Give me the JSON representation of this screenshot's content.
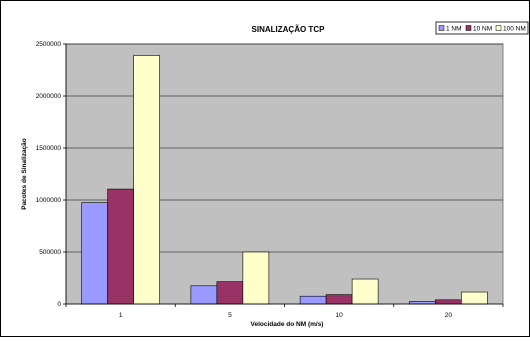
{
  "chart_data": {
    "type": "bar",
    "title": "SINALIZAÇÃO TCP",
    "xlabel": "Velocidade do NM (m/s)",
    "ylabel": "Pacotes de Sinalização",
    "categories": [
      "1",
      "5",
      "10",
      "20"
    ],
    "series": [
      {
        "name": "1 NM",
        "color": "#9999ff",
        "values": [
          975000,
          175000,
          75000,
          25000
        ]
      },
      {
        "name": "10 NM",
        "color": "#993366",
        "values": [
          1105000,
          215000,
          90000,
          40000
        ]
      },
      {
        "name": "100 NM",
        "color": "#ffffcc",
        "values": [
          2390000,
          500000,
          240000,
          115000
        ]
      }
    ],
    "ylim": [
      0,
      2500000
    ],
    "yticks": [
      "0",
      "500000",
      "1000000",
      "1500000",
      "2000000",
      "2500000"
    ],
    "grid": true,
    "legend_position": "top-right",
    "plot_background": "#c0c0c0"
  }
}
